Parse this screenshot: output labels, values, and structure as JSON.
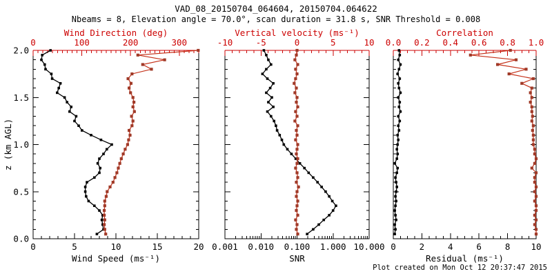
{
  "title": "VAD_08_20150704_064604, 20150704.064622",
  "subtitle": "Nbeams = 8, Elevation angle = 70.0°, scan duration = 31.8 s, SNR Threshold = 0.008",
  "footer": "Plot created on Mon Oct 12 20:37:47 2015",
  "colors": {
    "axis_red": "#cc0000",
    "line_red": "#c43018",
    "marker_red": "#a03a28",
    "black": "#000000",
    "background": "#ffffff"
  },
  "chart_data": [
    {
      "type": "line",
      "name": "wind-speed-direction",
      "y_axis": {
        "label": "z (km AGL)",
        "min": 0,
        "max": 2,
        "tick_values": [
          0,
          0.5,
          1,
          1.5,
          2
        ],
        "tick_labels": [
          "0.0",
          "0.5",
          "1.0",
          "1.5",
          "2.0"
        ],
        "minor_step": 0.1,
        "show_labels": true
      },
      "bottom_axis": {
        "label": "Wind Speed (ms⁻¹)",
        "scale": "linear",
        "min": 0,
        "max": 20,
        "tick_values": [
          0,
          5,
          10,
          15,
          20
        ],
        "tick_labels": [
          "0",
          "5",
          "10",
          "15",
          "20"
        ],
        "minor_step": 1
      },
      "top_axis": {
        "label": "Wind Direction (deg)",
        "scale": "linear",
        "min": 0,
        "max": 340,
        "tick_values": [
          0,
          100,
          200,
          300
        ],
        "tick_labels": [
          "0",
          "100",
          "200",
          "300"
        ],
        "minor_step": 10
      },
      "z": [
        0.05,
        0.1,
        0.15,
        0.2,
        0.25,
        0.3,
        0.35,
        0.4,
        0.45,
        0.5,
        0.55,
        0.6,
        0.65,
        0.7,
        0.75,
        0.8,
        0.85,
        0.9,
        0.95,
        1.0,
        1.05,
        1.1,
        1.15,
        1.2,
        1.25,
        1.3,
        1.35,
        1.4,
        1.45,
        1.5,
        1.55,
        1.6,
        1.65,
        1.7,
        1.75,
        1.8,
        1.85,
        1.9,
        1.95,
        2.0
      ],
      "series": [
        {
          "name": "wind_speed",
          "axis": "bottom",
          "color": "black",
          "values": [
            7.7,
            8.5,
            8.4,
            8.3,
            8.4,
            8.0,
            7.4,
            6.7,
            6.4,
            6.3,
            6.3,
            6.5,
            7.4,
            8.0,
            8.1,
            7.8,
            8.0,
            8.5,
            8.9,
            9.5,
            8.2,
            7.0,
            5.9,
            5.5,
            5.0,
            5.2,
            4.4,
            4.6,
            4.1,
            3.8,
            2.9,
            3.1,
            3.3,
            2.3,
            2.2,
            1.5,
            1.4,
            1.0,
            1.1,
            2.1
          ]
        },
        {
          "name": "wind_direction",
          "axis": "top",
          "color": "red",
          "values": [
            149,
            147,
            146,
            147,
            146,
            146,
            147,
            147,
            150,
            152,
            158,
            164,
            168,
            172,
            175,
            178,
            181,
            185,
            189,
            194,
            196,
            199,
            197,
            203,
            205,
            202,
            208,
            205,
            207,
            205,
            200,
            197,
            201,
            195,
            203,
            243,
            225,
            270,
            215,
            339
          ]
        }
      ]
    },
    {
      "type": "line",
      "name": "snr-vertical-velocity",
      "y_axis": {
        "label": "",
        "min": 0,
        "max": 2,
        "tick_values": [
          0,
          0.5,
          1,
          1.5,
          2
        ],
        "tick_labels": [
          "0.0",
          "0.5",
          "1.0",
          "1.5",
          "2.0"
        ],
        "minor_step": 0.1,
        "show_labels": false
      },
      "bottom_axis": {
        "label": "SNR",
        "scale": "log",
        "min": 0.001,
        "max": 10,
        "tick_values": [
          0.001,
          0.01,
          0.1,
          1,
          10
        ],
        "tick_labels": [
          "0.001",
          "0.010",
          "0.100",
          "1.000",
          "10.000"
        ]
      },
      "top_axis": {
        "label": "Vertical velocity (ms⁻¹)",
        "scale": "linear",
        "min": -10,
        "max": 10,
        "tick_values": [
          -10,
          -5,
          0,
          5,
          10
        ],
        "tick_labels": [
          "-10",
          "-5",
          "0",
          "5",
          "10"
        ],
        "minor_step": 1
      },
      "z": [
        0.05,
        0.1,
        0.15,
        0.2,
        0.25,
        0.3,
        0.35,
        0.4,
        0.45,
        0.5,
        0.55,
        0.6,
        0.65,
        0.7,
        0.75,
        0.8,
        0.85,
        0.9,
        0.95,
        1.0,
        1.05,
        1.1,
        1.15,
        1.2,
        1.25,
        1.3,
        1.35,
        1.4,
        1.45,
        1.5,
        1.55,
        1.6,
        1.65,
        1.7,
        1.75,
        1.8,
        1.85,
        1.9,
        1.95,
        2.0
      ],
      "series": [
        {
          "name": "snr",
          "axis": "bottom",
          "color": "black",
          "values": [
            0.19,
            0.28,
            0.4,
            0.55,
            0.78,
            1.0,
            1.2,
            0.95,
            0.78,
            0.62,
            0.48,
            0.37,
            0.28,
            0.21,
            0.16,
            0.12,
            0.092,
            0.07,
            0.054,
            0.043,
            0.038,
            0.033,
            0.028,
            0.026,
            0.023,
            0.019,
            0.015,
            0.022,
            0.016,
            0.02,
            0.014,
            0.018,
            0.022,
            0.015,
            0.011,
            0.014,
            0.019,
            0.016,
            0.014,
            0.012
          ]
        },
        {
          "name": "vertical_velocity",
          "axis": "top",
          "color": "red",
          "values": [
            0.1,
            -0.1,
            0.0,
            -0.2,
            0.1,
            -0.1,
            0.0,
            0.1,
            -0.1,
            0.0,
            0.2,
            -0.1,
            0.1,
            0.0,
            -0.2,
            0.0,
            0.1,
            -0.1,
            0.0,
            0.1,
            -0.2,
            0.0,
            -0.1,
            0.1,
            -0.3,
            0.0,
            -0.2,
            0.1,
            -0.1,
            0.0,
            -0.3,
            -0.1,
            -0.4,
            -0.2,
            0.0,
            -0.2,
            0.1,
            -0.3,
            -0.1,
            0.0
          ]
        }
      ]
    },
    {
      "type": "line",
      "name": "residual-correlation",
      "y_axis": {
        "label": "",
        "min": 0,
        "max": 2,
        "tick_values": [
          0,
          0.5,
          1,
          1.5,
          2
        ],
        "tick_labels": [
          "0.0",
          "0.5",
          "1.0",
          "1.5",
          "2.0"
        ],
        "minor_step": 0.1,
        "show_labels": false
      },
      "bottom_axis": {
        "label": "Residual (ms⁻¹)",
        "scale": "linear",
        "min": 0,
        "max": 10,
        "tick_values": [
          0,
          2,
          4,
          6,
          8,
          10
        ],
        "tick_labels": [
          "0",
          "2",
          "4",
          "6",
          "8",
          "10"
        ],
        "minor_step": 0.5
      },
      "top_axis": {
        "label": "Correlation",
        "scale": "linear",
        "min": 0,
        "max": 1,
        "tick_values": [
          0,
          0.2,
          0.4,
          0.6,
          0.8,
          1.0
        ],
        "tick_labels": [
          "0.0",
          "0.2",
          "0.4",
          "0.6",
          "0.8",
          "1.0"
        ],
        "minor_step": 0.05
      },
      "z": [
        0.05,
        0.1,
        0.15,
        0.2,
        0.25,
        0.3,
        0.35,
        0.4,
        0.45,
        0.5,
        0.55,
        0.6,
        0.65,
        0.7,
        0.75,
        0.8,
        0.85,
        0.9,
        0.95,
        1.0,
        1.05,
        1.1,
        1.15,
        1.2,
        1.25,
        1.3,
        1.35,
        1.4,
        1.45,
        1.5,
        1.55,
        1.6,
        1.65,
        1.7,
        1.75,
        1.8,
        1.85,
        1.9,
        1.95,
        2.0
      ],
      "series": [
        {
          "name": "residual",
          "axis": "bottom",
          "color": "black",
          "values": [
            0.1,
            0.15,
            0.1,
            0.2,
            0.15,
            0.1,
            0.15,
            0.2,
            0.15,
            0.2,
            0.25,
            0.2,
            0.15,
            0.25,
            0.3,
            0.1,
            0.25,
            0.3,
            0.25,
            0.3,
            0.35,
            0.3,
            0.4,
            0.35,
            0.45,
            0.35,
            0.5,
            0.4,
            0.45,
            0.35,
            0.5,
            0.4,
            0.35,
            0.45,
            0.3,
            0.4,
            0.5,
            0.35,
            0.45,
            0.4
          ]
        },
        {
          "name": "correlation",
          "axis": "top",
          "color": "red",
          "values": [
            1.0,
            1.0,
            0.99,
            1.0,
            0.99,
            1.0,
            1.0,
            0.99,
            1.0,
            0.99,
            1.0,
            0.99,
            0.99,
            1.0,
            0.97,
            0.99,
            1.0,
            0.99,
            0.99,
            0.98,
            0.98,
            0.98,
            0.975,
            0.98,
            0.97,
            0.975,
            0.97,
            0.97,
            0.96,
            0.97,
            0.96,
            0.97,
            0.9,
            0.98,
            0.81,
            0.93,
            0.73,
            0.86,
            0.54,
            0.82
          ]
        }
      ]
    }
  ]
}
